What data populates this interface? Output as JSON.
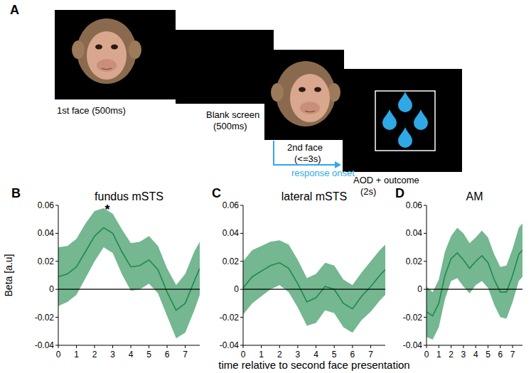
{
  "schematic": {
    "panel": "A",
    "steps": [
      {
        "lines": [
          "1st face (500ms)"
        ]
      },
      {
        "lines": [
          "Blank screen",
          "(500ms)"
        ]
      },
      {
        "lines": [
          "2nd face",
          "(<=3s)"
        ]
      },
      {
        "lines": [
          "AOD + outcome",
          "(2s)"
        ]
      }
    ],
    "response_label": "response onset"
  },
  "chart_data": [
    {
      "type": "line",
      "panel": "B",
      "title": "fundus mSTS",
      "ylabel": "Beta [a.u]",
      "x": [
        0,
        0.5,
        1,
        1.5,
        2,
        2.5,
        3,
        3.5,
        4,
        4.5,
        5,
        5.5,
        6,
        6.5,
        7,
        7.5,
        7.8
      ],
      "xlim": [
        0,
        7.8
      ],
      "xticks": [
        0,
        1,
        2,
        3,
        4,
        5,
        6,
        7
      ],
      "ylim": [
        -0.04,
        0.06
      ],
      "yticks": [
        -0.04,
        -0.02,
        0,
        0.02,
        0.04,
        0.06
      ],
      "series": [
        {
          "color": "#1f8a4c",
          "values": [
            0.009,
            0.011,
            0.016,
            0.027,
            0.038,
            0.044,
            0.04,
            0.027,
            0.016,
            0.017,
            0.021,
            0.014,
            -0.002,
            -0.015,
            -0.01,
            0.006,
            0.015
          ],
          "upper": [
            0.03,
            0.031,
            0.036,
            0.047,
            0.056,
            0.058,
            0.054,
            0.043,
            0.033,
            0.034,
            0.038,
            0.031,
            0.015,
            0.003,
            0.011,
            0.027,
            0.034
          ],
          "lower": [
            -0.012,
            -0.009,
            -0.004,
            0.008,
            0.02,
            0.03,
            0.026,
            0.011,
            -0.001,
            0.0,
            0.004,
            -0.003,
            -0.019,
            -0.035,
            -0.031,
            -0.015,
            -0.004
          ]
        }
      ],
      "annotations": [
        {
          "text": "*",
          "x": 2.7,
          "y": 0.058
        }
      ]
    },
    {
      "type": "line",
      "panel": "C",
      "title": "lateral mSTS",
      "xlabel": "time relative to second face presentation",
      "x": [
        0,
        0.5,
        1,
        1.5,
        2,
        2.5,
        3,
        3.5,
        4,
        4.5,
        5,
        5.5,
        6,
        6.5,
        7,
        7.5,
        7.8
      ],
      "xlim": [
        0,
        7.8
      ],
      "xticks": [
        0,
        1,
        2,
        3,
        4,
        5,
        6,
        7
      ],
      "ylim": [
        -0.04,
        0.06
      ],
      "yticks": [
        -0.04,
        -0.02,
        0,
        0.02,
        0.04,
        0.06
      ],
      "series": [
        {
          "color": "#1f8a4c",
          "values": [
            0.001,
            0.009,
            0.013,
            0.017,
            0.019,
            0.015,
            0.004,
            -0.009,
            -0.006,
            0.002,
            0.0,
            -0.01,
            -0.014,
            -0.005,
            0.002,
            0.01,
            0.014
          ],
          "upper": [
            0.02,
            0.028,
            0.031,
            0.034,
            0.035,
            0.032,
            0.021,
            0.008,
            0.011,
            0.019,
            0.017,
            0.007,
            0.003,
            0.012,
            0.02,
            0.028,
            0.032
          ],
          "lower": [
            -0.018,
            -0.01,
            -0.005,
            0.0,
            0.003,
            -0.002,
            -0.013,
            -0.026,
            -0.024,
            -0.015,
            -0.017,
            -0.027,
            -0.031,
            -0.022,
            -0.016,
            -0.008,
            -0.004
          ]
        }
      ]
    },
    {
      "type": "line",
      "panel": "D",
      "title": "AM",
      "x": [
        0,
        0.5,
        1,
        1.5,
        2,
        2.5,
        3,
        3.5,
        4,
        4.5,
        5,
        5.5,
        6,
        6.5,
        7,
        7.5,
        7.8
      ],
      "xlim": [
        0,
        7.8
      ],
      "xticks": [
        0,
        1,
        2,
        3,
        4,
        5,
        6,
        7
      ],
      "ylim": [
        -0.04,
        0.06
      ],
      "yticks": [
        -0.04,
        -0.02,
        0,
        0.02,
        0.04,
        0.06
      ],
      "series": [
        {
          "color": "#1f8a4c",
          "values": [
            -0.016,
            -0.019,
            -0.01,
            0.01,
            0.022,
            0.026,
            0.021,
            0.015,
            0.02,
            0.024,
            0.019,
            0.007,
            -0.002,
            -0.002,
            0.01,
            0.025,
            0.028
          ],
          "upper": [
            0.002,
            -0.002,
            0.007,
            0.027,
            0.038,
            0.044,
            0.04,
            0.033,
            0.037,
            0.042,
            0.037,
            0.025,
            0.016,
            0.017,
            0.029,
            0.044,
            0.047
          ],
          "lower": [
            -0.034,
            -0.036,
            -0.027,
            -0.007,
            0.006,
            0.008,
            0.002,
            -0.003,
            0.003,
            0.006,
            0.001,
            -0.011,
            -0.02,
            -0.021,
            -0.009,
            0.006,
            0.009
          ]
        }
      ]
    }
  ]
}
